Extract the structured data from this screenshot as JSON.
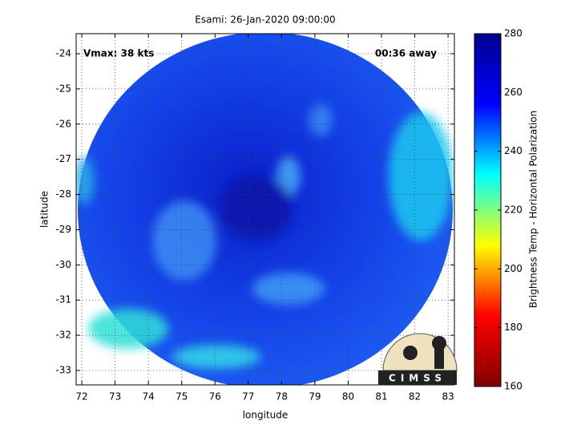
{
  "chart_data": {
    "type": "image",
    "title": "Esami: 26-Jan-2020 09:00:00",
    "xlabel": "longitude",
    "ylabel": "latitude",
    "xlim": [
      71.83,
      83.19
    ],
    "ylim": [
      -33.41,
      -23.43
    ],
    "xticks": [
      72,
      73,
      74,
      75,
      76,
      77,
      78,
      79,
      80,
      81,
      82,
      83
    ],
    "yticks": [
      -33,
      -32,
      -31,
      -30,
      -29,
      -28,
      -27,
      -26,
      -25,
      -24
    ],
    "grid": true,
    "annotations": [
      "Vmax: 38 kts",
      "00:36 away"
    ],
    "colorbar": {
      "label": "Brightness Temp - Horizontal Polarization",
      "lim": [
        160,
        280
      ],
      "ticks": [
        160,
        180,
        200,
        220,
        240,
        260,
        280
      ],
      "colormap": "jet"
    },
    "logo": "CIMSS"
  }
}
